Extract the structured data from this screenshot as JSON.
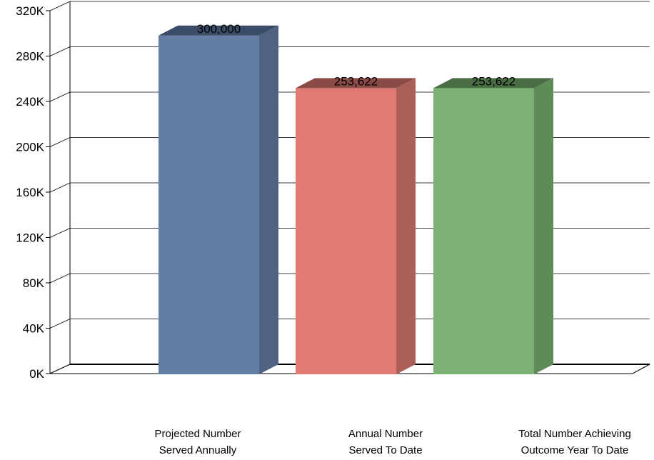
{
  "chart_data": {
    "type": "bar",
    "categories": [
      [
        "Projected Number",
        "Served Annually"
      ],
      [
        "Annual Number",
        "Served To Date"
      ],
      [
        "Total Number Achieving",
        "Outcome Year To Date"
      ]
    ],
    "values": [
      300000,
      253622,
      253622
    ],
    "data_labels": [
      "300,000",
      "253,622",
      "253,622"
    ],
    "colors": [
      "#637ea5",
      "#e07a73",
      "#7bb173"
    ],
    "side_colors": [
      "#4e6282",
      "#ac5e59",
      "#5f8b59"
    ],
    "top_colors": [
      "#3b4d66",
      "#8a4a46",
      "#4a6d45"
    ],
    "ylim": [
      0,
      320000
    ],
    "y_ticks": [
      0,
      40000,
      80000,
      120000,
      160000,
      200000,
      240000,
      280000,
      320000
    ],
    "y_tick_labels": [
      "0K",
      "40K",
      "80K",
      "120K",
      "160K",
      "200K",
      "240K",
      "280K",
      "320K"
    ],
    "grid": true,
    "style": "3d-bar"
  }
}
